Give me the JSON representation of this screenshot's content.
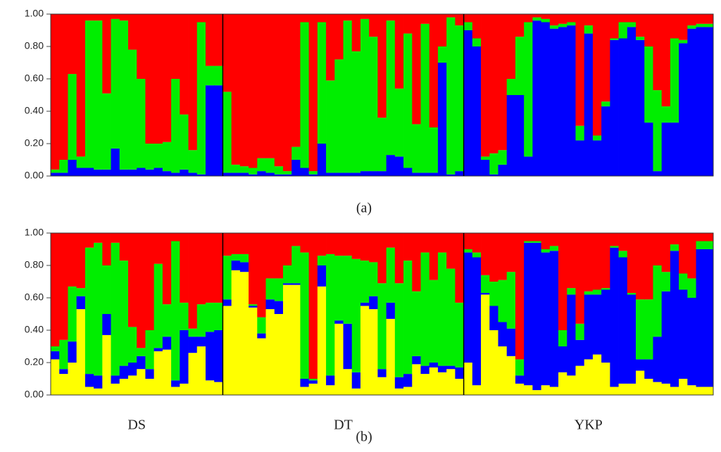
{
  "chart_data": [
    {
      "type": "bar",
      "stacked": true,
      "title": "(a)",
      "ylim": [
        0,
        1
      ],
      "yticks": [
        {
          "value": 0,
          "label": "0.00"
        },
        {
          "value": 0.2,
          "label": "0.20"
        },
        {
          "value": 0.4,
          "label": "0.40"
        },
        {
          "value": 0.6,
          "label": "0.60"
        },
        {
          "value": 0.8,
          "label": "0.80"
        },
        {
          "value": 1,
          "label": "1.00"
        }
      ],
      "series": [
        {
          "color": "#0000ff",
          "values": [
            0.02,
            0.02,
            0.1,
            0.05,
            0.05,
            0.04,
            0.04,
            0.17,
            0.04,
            0.04,
            0.05,
            0.04,
            0.05,
            0.03,
            0.02,
            0.04,
            0.02,
            0.01,
            0.56,
            0.56,
            0.02,
            0.02,
            0.02,
            0.01,
            0.03,
            0.02,
            0.01,
            0.01,
            0.1,
            0.05,
            0.01,
            0.2,
            0.02,
            0.02,
            0.02,
            0.02,
            0.03,
            0.03,
            0.03,
            0.13,
            0.12,
            0.05,
            0.02,
            0.02,
            0.02,
            0.7,
            0.01,
            0.03,
            0.9,
            0.8,
            0.1,
            0.01,
            0.07,
            0.5,
            0.5,
            0.12,
            0.96,
            0.95,
            0.91,
            0.92,
            0.93,
            0.22,
            0.88,
            0.22,
            0.43,
            0.84,
            0.85,
            0.92,
            0.84,
            0.33,
            0.03,
            0.33,
            0.33,
            0.82,
            0.91,
            0.92,
            0.92
          ]
        },
        {
          "color": "#00ee00",
          "values": [
            0.02,
            0.08,
            0.53,
            0.07,
            0.91,
            0.92,
            0.47,
            0.8,
            0.92,
            0.74,
            0.55,
            0.16,
            0.15,
            0.18,
            0.58,
            0.34,
            0.14,
            0.94,
            0.12,
            0.12,
            0.5,
            0.05,
            0.04,
            0.04,
            0.08,
            0.09,
            0.05,
            0.02,
            0.08,
            0.9,
            0.02,
            0.75,
            0.57,
            0.7,
            0.94,
            0.75,
            0.94,
            0.83,
            0.33,
            0.83,
            0.42,
            0.83,
            0.3,
            0.92,
            0.28,
            0.1,
            0.97,
            0.9,
            0.05,
            0.05,
            0.02,
            0.13,
            0.09,
            0.1,
            0.36,
            0.83,
            0.02,
            0.02,
            0.02,
            0.02,
            0.02,
            0.09,
            0.05,
            0.03,
            0.03,
            0.01,
            0.1,
            0.03,
            0.02,
            0.47,
            0.5,
            0.1,
            0.52,
            0.02,
            0.02,
            0.02,
            0.02
          ]
        },
        {
          "color": "#ff0000",
          "values": [
            0.96,
            0.9,
            0.37,
            0.88,
            0.04,
            0.04,
            0.49,
            0.03,
            0.04,
            0.22,
            0.4,
            0.8,
            0.8,
            0.79,
            0.4,
            0.62,
            0.84,
            0.05,
            0.32,
            0.32,
            0.48,
            0.93,
            0.94,
            0.95,
            0.89,
            0.89,
            0.94,
            0.97,
            0.82,
            0.05,
            0.97,
            0.05,
            0.41,
            0.28,
            0.04,
            0.23,
            0.03,
            0.14,
            0.64,
            0.04,
            0.46,
            0.12,
            0.68,
            0.06,
            0.7,
            0.2,
            0.02,
            0.07,
            0.05,
            0.15,
            0.88,
            0.86,
            0.84,
            0.4,
            0.14,
            0.05,
            0.02,
            0.03,
            0.07,
            0.06,
            0.05,
            0.69,
            0.07,
            0.75,
            0.54,
            0.15,
            0.05,
            0.05,
            0.14,
            0.2,
            0.47,
            0.57,
            0.15,
            0.16,
            0.07,
            0.06,
            0.06
          ]
        }
      ]
    },
    {
      "type": "bar",
      "stacked": true,
      "title": "(b)",
      "ylim": [
        0,
        1
      ],
      "yticks": [
        {
          "value": 0,
          "label": "0.00"
        },
        {
          "value": 0.2,
          "label": "0.20"
        },
        {
          "value": 0.4,
          "label": "0.40"
        },
        {
          "value": 0.6,
          "label": "0.60"
        },
        {
          "value": 0.8,
          "label": "0.80"
        },
        {
          "value": 1,
          "label": "1.00"
        }
      ],
      "groups": [
        {
          "name": "DS",
          "size": 20
        },
        {
          "name": "DT",
          "size": 28
        },
        {
          "name": "YKP",
          "size": 29
        }
      ],
      "series": [
        {
          "color": "#ffff00",
          "values": [
            0.22,
            0.13,
            0.2,
            0.53,
            0.05,
            0.04,
            0.37,
            0.07,
            0.1,
            0.12,
            0.16,
            0.1,
            0.27,
            0.28,
            0.05,
            0.07,
            0.26,
            0.3,
            0.09,
            0.08,
            0.55,
            0.77,
            0.76,
            0.54,
            0.35,
            0.53,
            0.5,
            0.68,
            0.68,
            0.05,
            0.07,
            0.67,
            0.06,
            0.44,
            0.16,
            0.04,
            0.55,
            0.53,
            0.11,
            0.47,
            0.04,
            0.05,
            0.19,
            0.13,
            0.17,
            0.14,
            0.16,
            0.1,
            0.2,
            0.06,
            0.62,
            0.4,
            0.3,
            0.24,
            0.07,
            0.06,
            0.03,
            0.06,
            0.05,
            0.14,
            0.12,
            0.18,
            0.22,
            0.25,
            0.2,
            0.05,
            0.07,
            0.07,
            0.15,
            0.1,
            0.08,
            0.07,
            0.05,
            0.1,
            0.06,
            0.05,
            0.05
          ]
        },
        {
          "color": "#0000ff",
          "values": [
            0.05,
            0.03,
            0.13,
            0.08,
            0.08,
            0.08,
            0.13,
            0.05,
            0.08,
            0.08,
            0.08,
            0.06,
            0.02,
            0.08,
            0.04,
            0.33,
            0.1,
            0.06,
            0.3,
            0.32,
            0.04,
            0.06,
            0.06,
            0.01,
            0.03,
            0.06,
            0.08,
            0.01,
            0.01,
            0.05,
            0.02,
            0.13,
            0.06,
            0.02,
            0.28,
            0.1,
            0.02,
            0.08,
            0.05,
            0.1,
            0.07,
            0.08,
            0.05,
            0.05,
            0.03,
            0.04,
            0.02,
            0.07,
            0.68,
            0.79,
            0.01,
            0.15,
            0.15,
            0.17,
            0.05,
            0.88,
            0.91,
            0.82,
            0.84,
            0.16,
            0.5,
            0.16,
            0.4,
            0.37,
            0.45,
            0.86,
            0.78,
            0.55,
            0.07,
            0.12,
            0.28,
            0.57,
            0.84,
            0.55,
            0.54,
            0.85,
            0.85
          ]
        },
        {
          "color": "#00ee00",
          "values": [
            0.03,
            0.18,
            0.34,
            0.05,
            0.78,
            0.82,
            0.3,
            0.82,
            0.65,
            0.22,
            0.05,
            0.24,
            0.52,
            0.2,
            0.86,
            0.17,
            0.05,
            0.2,
            0.18,
            0.17,
            0.27,
            0.04,
            0.05,
            0.01,
            0.1,
            0.13,
            0.14,
            0.11,
            0.23,
            0.78,
            0.01,
            0.06,
            0.75,
            0.4,
            0.42,
            0.7,
            0.26,
            0.21,
            0.53,
            0.34,
            0.58,
            0.7,
            0.4,
            0.7,
            0.51,
            0.7,
            0.6,
            0.4,
            0.02,
            0.03,
            0.11,
            0.15,
            0.26,
            0.35,
            0.1,
            0.01,
            0.01,
            0.02,
            0.03,
            0.1,
            0.04,
            0.1,
            0.02,
            0.03,
            0.01,
            0.01,
            0.04,
            0.01,
            0.37,
            0.37,
            0.44,
            0.12,
            0.04,
            0.1,
            0.12,
            0.05,
            0.05
          ]
        },
        {
          "color": "#ff0000",
          "values": [
            0.7,
            0.66,
            0.33,
            0.34,
            0.09,
            0.06,
            0.2,
            0.06,
            0.17,
            0.58,
            0.71,
            0.6,
            0.19,
            0.44,
            0.05,
            0.43,
            0.59,
            0.44,
            0.43,
            0.43,
            0.14,
            0.13,
            0.13,
            0.44,
            0.52,
            0.28,
            0.28,
            0.2,
            0.08,
            0.12,
            0.9,
            0.14,
            0.13,
            0.14,
            0.14,
            0.16,
            0.17,
            0.18,
            0.31,
            0.09,
            0.31,
            0.17,
            0.36,
            0.12,
            0.29,
            0.12,
            0.22,
            0.43,
            0.1,
            0.12,
            0.26,
            0.3,
            0.29,
            0.24,
            0.78,
            0.05,
            0.05,
            0.1,
            0.08,
            0.6,
            0.34,
            0.56,
            0.36,
            0.35,
            0.34,
            0.08,
            0.11,
            0.37,
            0.41,
            0.41,
            0.2,
            0.24,
            0.07,
            0.25,
            0.28,
            0.05,
            0.05
          ]
        }
      ]
    }
  ]
}
